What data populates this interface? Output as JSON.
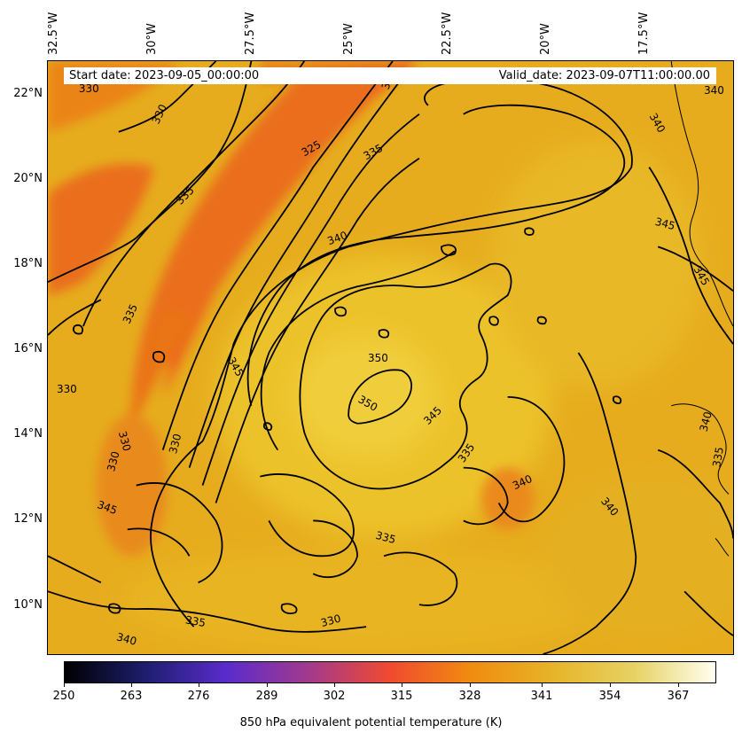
{
  "header": {
    "start_date": "Start date: 2023-09-05_00:00:00",
    "valid_date": "Valid_date: 2023-09-07T11:00:00.00"
  },
  "map": {
    "projection": "lat-lon",
    "lon_range": [
      "33°W",
      "16°W"
    ],
    "lat_range": [
      "8.9°N",
      "22.8°N"
    ],
    "lon_ticks": [
      "32.5°W",
      "30°W",
      "27.5°W",
      "25°W",
      "22.5°W",
      "20°W",
      "17.5°W"
    ],
    "lat_ticks": [
      "22°N",
      "20°N",
      "18°N",
      "16°N",
      "14°N",
      "12°N",
      "10°N"
    ],
    "coastline": "West Africa / Cape Verde"
  },
  "contours": {
    "color": "#000000",
    "labels": [
      "330",
      "335",
      "325",
      "335",
      "330",
      "340",
      "345",
      "345",
      "335",
      "335",
      "330",
      "330",
      "330",
      "330",
      "345",
      "350",
      "350",
      "345",
      "335",
      "340",
      "340",
      "335",
      "335",
      "340",
      "330",
      "340",
      "340",
      "335",
      "345",
      "340"
    ]
  },
  "colorbar": {
    "title": "850 hPa equivalent potential temperature (K)",
    "ticks": [
      "250",
      "263",
      "276",
      "289",
      "302",
      "315",
      "328",
      "341",
      "354",
      "367"
    ],
    "colormap": "CMRmap",
    "colors": [
      "#000000",
      "#1e1e6e",
      "#5a2ccc",
      "#a23a8c",
      "#f04a30",
      "#f08c10",
      "#e6b428",
      "#e6d264",
      "#fffff0"
    ]
  }
}
